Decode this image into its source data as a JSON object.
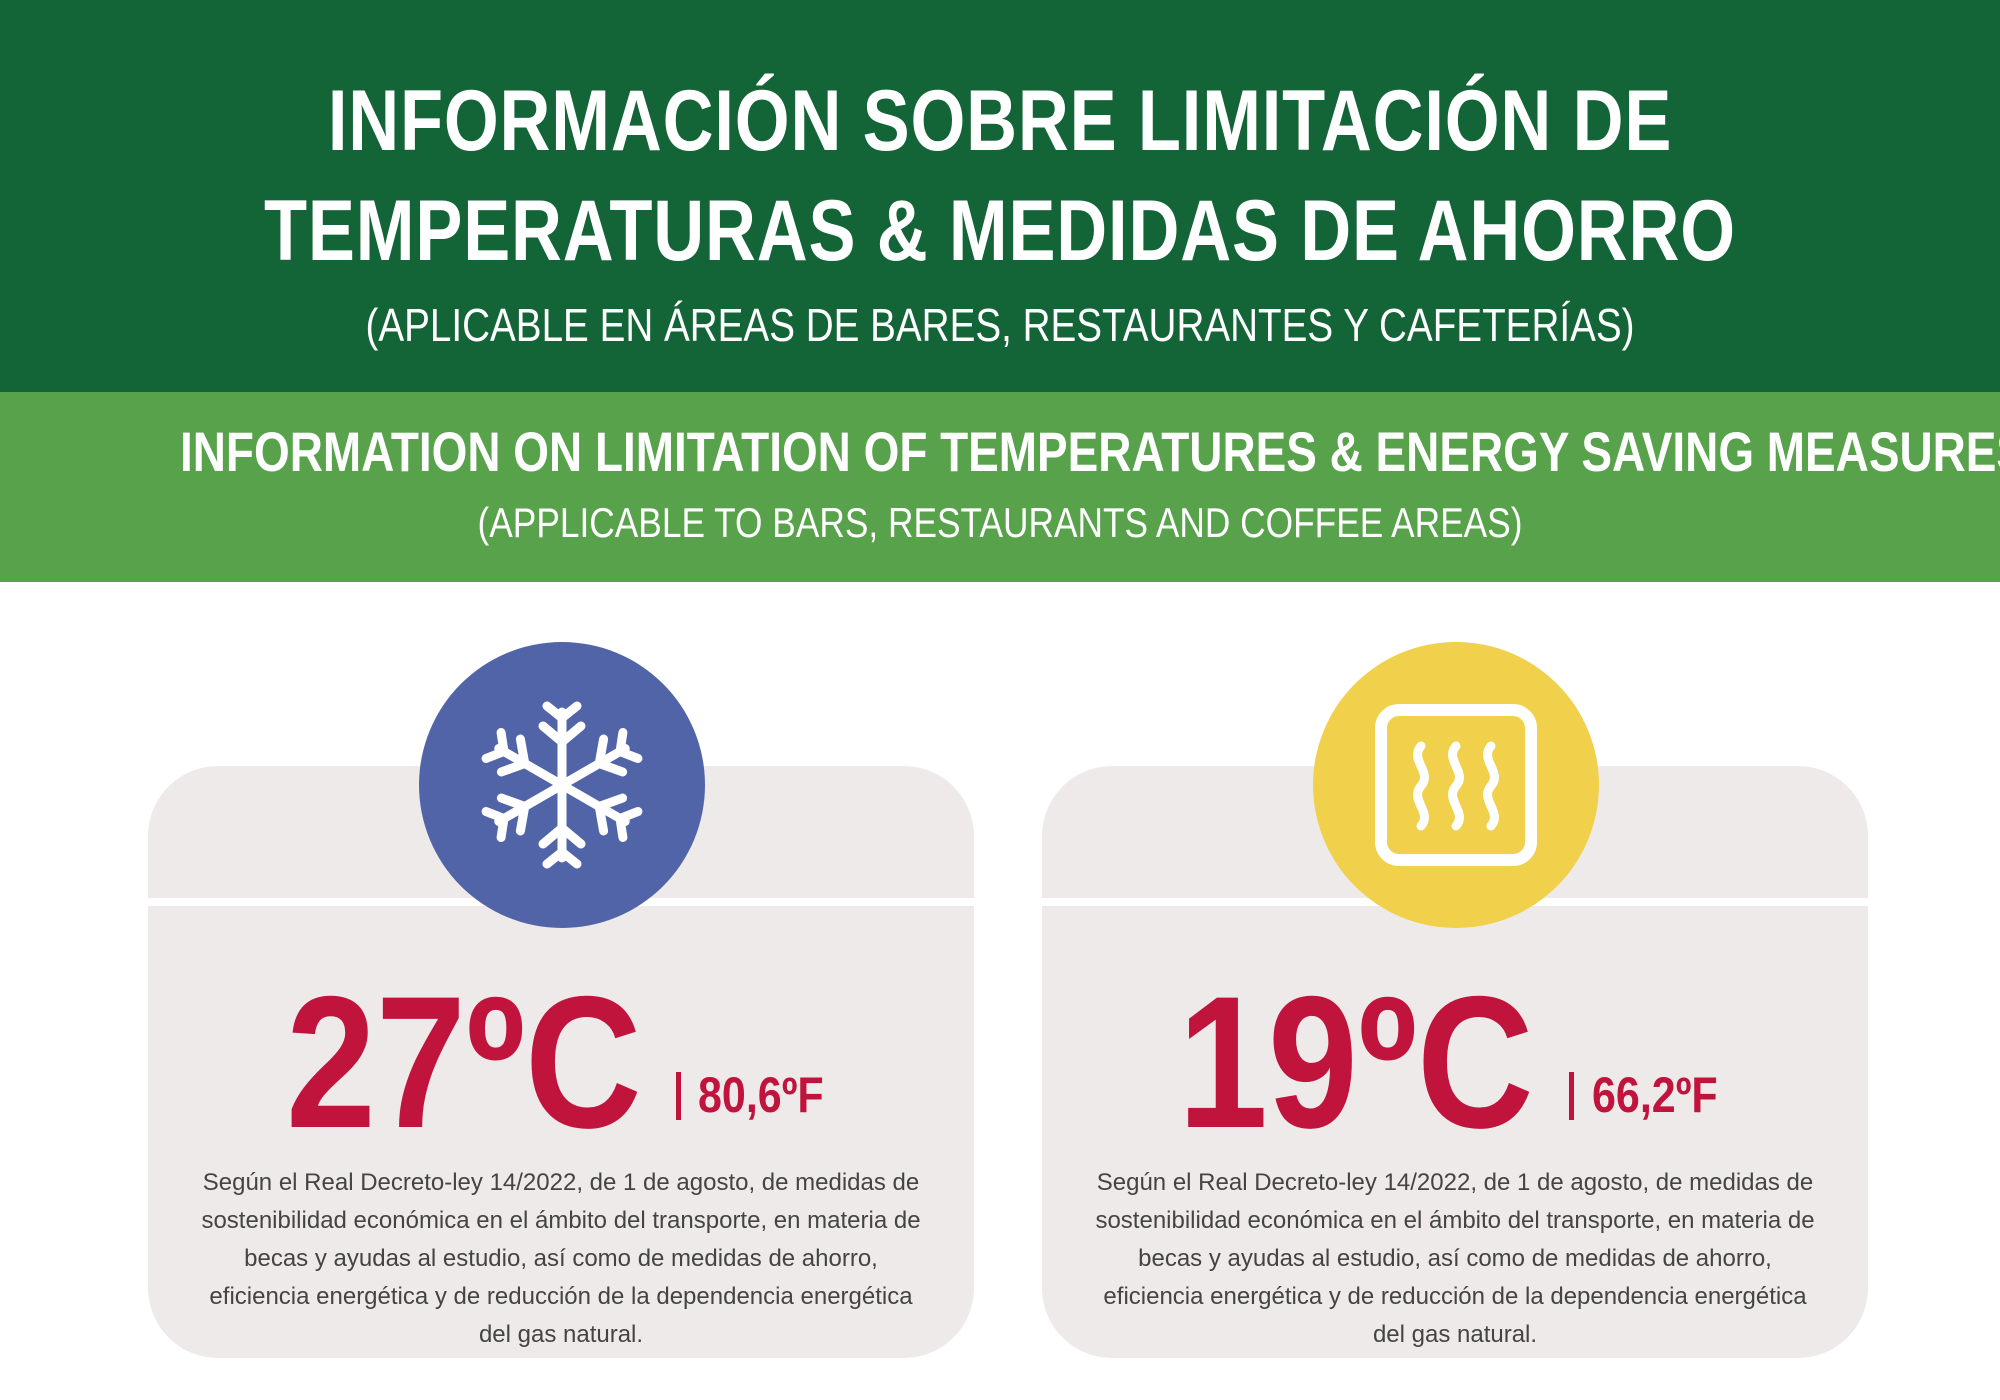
{
  "header_es": {
    "title_line1": "INFORMACIÓN SOBRE  LIMITACIÓN DE",
    "title_line2": "TEMPERATURAS & MEDIDAS DE AHORRO",
    "subtitle": "(APLICABLE EN ÁREAS DE  BARES, RESTAURANTES Y CAFETERÍAS)"
  },
  "header_en": {
    "title": "INFORMATION ON LIMITATION OF TEMPERATURES & ENERGY SAVING MEASURES",
    "subtitle": "(APPLICABLE TO BARS, RESTAURANTS AND COFFEE AREAS)"
  },
  "cards": [
    {
      "icon": "snowflake-icon",
      "temp_c": "27ºC",
      "temp_f": "80,6ºF",
      "legal_text": "Según el Real Decreto-ley 14/2022, de 1 de agosto, de medidas de sostenibilidad económica en el ámbito del transporte, en materia de becas y ayudas al estudio, así como de medidas de ahorro, eficiencia energética y de reducción de la dependencia energética del gas natural."
    },
    {
      "icon": "heater-icon",
      "temp_c": "19ºC",
      "temp_f": "66,2ºF",
      "legal_text": "Según el Real Decreto-ley 14/2022, de 1 de agosto, de medidas de sostenibilidad económica en el ámbito del transporte, en materia de becas y ayudas al estudio, así como de medidas de ahorro, eficiencia energética y de reducción de la dependencia energética del gas natural."
    }
  ],
  "colors": {
    "dark_green": "#136436",
    "light_green": "#58a24c",
    "cold_blue": "#5264a8",
    "heat_yellow": "#f1d14b",
    "temperature_red": "#c0143c",
    "card_gray": "#eeeaea"
  }
}
